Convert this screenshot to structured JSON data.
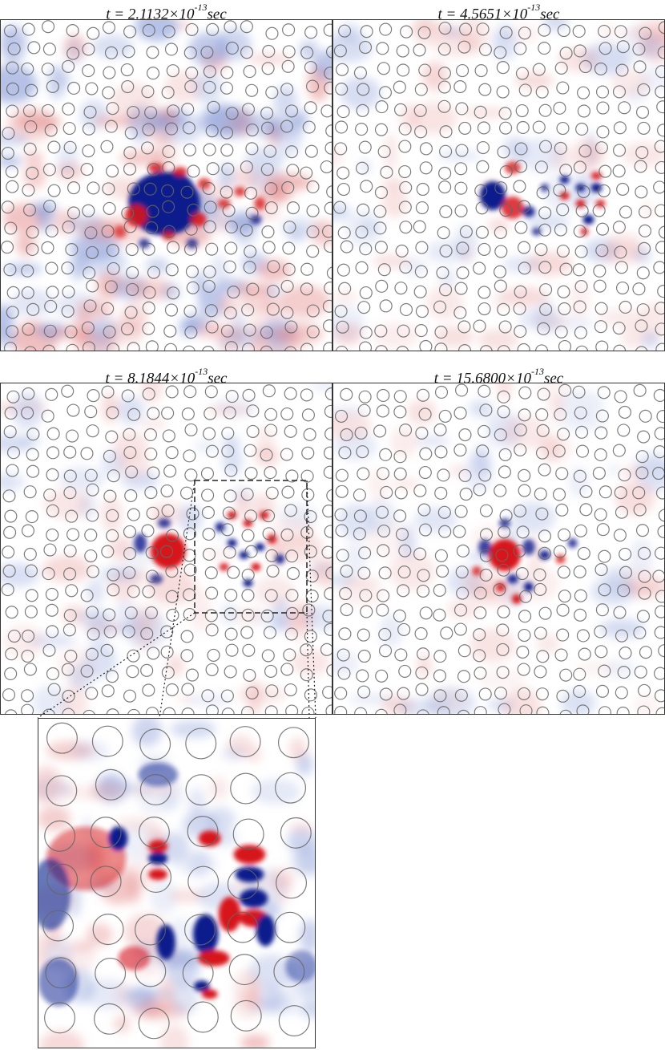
{
  "figure": {
    "panels": [
      {
        "id": "p1",
        "time_prefix": "t = ",
        "time_mantissa": "2.1132×10",
        "time_exponent": "-13",
        "time_unit": "sec",
        "field": "broad"
      },
      {
        "id": "p2",
        "time_prefix": "t = ",
        "time_mantissa": "4.5651×10",
        "time_exponent": "-13",
        "time_unit": "sec",
        "field": "two-lobe"
      },
      {
        "id": "p3",
        "time_prefix": "t = ",
        "time_mantissa": "8.1844×10",
        "time_exponent": "-13",
        "time_unit": "sec",
        "field": "localized"
      },
      {
        "id": "p4",
        "time_prefix": "t = ",
        "time_mantissa": "15.6800×10",
        "time_exponent": "-13",
        "time_unit": "sec",
        "field": "localized-center"
      }
    ],
    "inset": {
      "source_panel": "p3",
      "description_shown": false
    },
    "colors": {
      "positive": "#d7191c",
      "negative": "#0a1a8c",
      "scatterer_outline": "#666666",
      "border": "#333333"
    }
  }
}
